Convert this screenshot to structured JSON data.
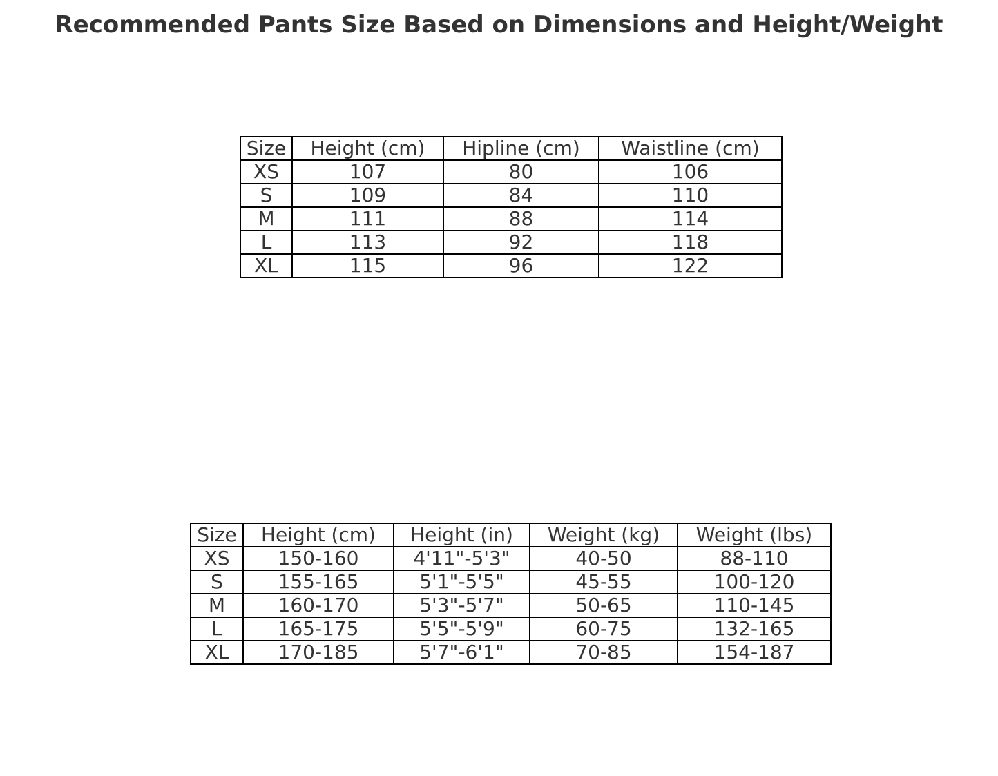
{
  "title": "Recommended Pants Size Based on Dimensions and Height/Weight",
  "chart_data": [
    {
      "type": "table",
      "columns": [
        "Size",
        "Height (cm)",
        "Hipline (cm)",
        "Waistline (cm)"
      ],
      "rows": [
        [
          "XS",
          "107",
          "80",
          "106"
        ],
        [
          "S",
          "109",
          "84",
          "110"
        ],
        [
          "M",
          "111",
          "88",
          "114"
        ],
        [
          "L",
          "113",
          "92",
          "118"
        ],
        [
          "XL",
          "115",
          "96",
          "122"
        ]
      ]
    },
    {
      "type": "table",
      "columns": [
        "Size",
        "Height (cm)",
        "Height (in)",
        "Weight (kg)",
        "Weight (lbs)"
      ],
      "rows": [
        [
          "XS",
          "150-160",
          "4'11\"-5'3\"",
          "40-50",
          "88-110"
        ],
        [
          "S",
          "155-165",
          "5'1\"-5'5\"",
          "45-55",
          "100-120"
        ],
        [
          "M",
          "160-170",
          "5'3\"-5'7\"",
          "50-65",
          "110-145"
        ],
        [
          "L",
          "165-175",
          "5'5\"-5'9\"",
          "60-75",
          "132-165"
        ],
        [
          "XL",
          "170-185",
          "5'7\"-6'1\"",
          "70-85",
          "154-187"
        ]
      ]
    }
  ]
}
